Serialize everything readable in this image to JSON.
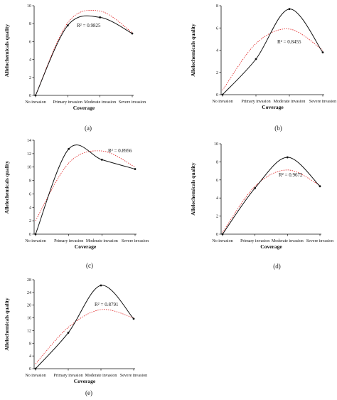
{
  "chart_data": [
    {
      "type": "line",
      "panel_label": "(a)",
      "xlabel": "Coverage",
      "ylabel": "Allelochemicals quality",
      "categories": [
        "No invasion",
        "Primary invasion",
        "Moderate invasion",
        "Severe invasion"
      ],
      "values": [
        0,
        7.8,
        8.7,
        6.9
      ],
      "ylim": [
        0,
        10
      ],
      "yticks": [
        0,
        2,
        4,
        6,
        8,
        10
      ],
      "r2_label": "R² = 0.9825",
      "fit_values": [
        0,
        8.1,
        9.4,
        7.0
      ]
    },
    {
      "type": "line",
      "panel_label": "(b)",
      "xlabel": "Coverage",
      "ylabel": "Allelochemicals quality",
      "categories": [
        "No invasion",
        "Primary invasion",
        "Moderate invasion",
        "Severe invasion"
      ],
      "values": [
        0,
        3.2,
        7.7,
        3.8
      ],
      "ylim": [
        0,
        8
      ],
      "yticks": [
        0,
        2,
        4,
        6,
        8
      ],
      "r2_label": "R² = 0.8455",
      "fit_values": [
        0.4,
        4.6,
        5.9,
        4.0
      ]
    },
    {
      "type": "line",
      "panel_label": "(c)",
      "xlabel": "Coverage",
      "ylabel": "Allelochemicals quality",
      "categories": [
        "No invasion",
        "Primary invasion",
        "Moderate invasion",
        "Severe invasion"
      ],
      "values": [
        0,
        12.7,
        11.1,
        9.7
      ],
      "ylim": [
        0,
        14
      ],
      "yticks": [
        0,
        2,
        4,
        6,
        8,
        10,
        12,
        14
      ],
      "r2_label": "R² = 0.8956",
      "fit_values": [
        2.0,
        10.6,
        12.4,
        10.0
      ]
    },
    {
      "type": "line",
      "panel_label": "(d)",
      "xlabel": "Coverage",
      "ylabel": "Allelochemicals quality",
      "categories": [
        "No invasion",
        "Primary invasion",
        "Moderate invasion",
        "Severe invasion"
      ],
      "values": [
        0,
        5.1,
        8.5,
        5.3
      ],
      "ylim": [
        0,
        10
      ],
      "yticks": [
        0,
        2,
        4,
        6,
        8,
        10
      ],
      "r2_label": "R² = 0.9672",
      "fit_values": [
        0.2,
        5.3,
        7.1,
        5.4
      ]
    },
    {
      "type": "line",
      "panel_label": "(e)",
      "xlabel": "Coverage",
      "ylabel": "Allelochemicals quality",
      "categories": [
        "No invasion",
        "Primary invasion",
        "Moderate invasion",
        "Severe invasion"
      ],
      "values": [
        0,
        11.3,
        26.2,
        15.7
      ],
      "ylim": [
        0,
        28
      ],
      "yticks": [
        0,
        4,
        8,
        12,
        16,
        20,
        24,
        28
      ],
      "r2_label": "R² = 0.8791",
      "fit_values": [
        1.5,
        13.0,
        18.6,
        16.0
      ]
    }
  ]
}
